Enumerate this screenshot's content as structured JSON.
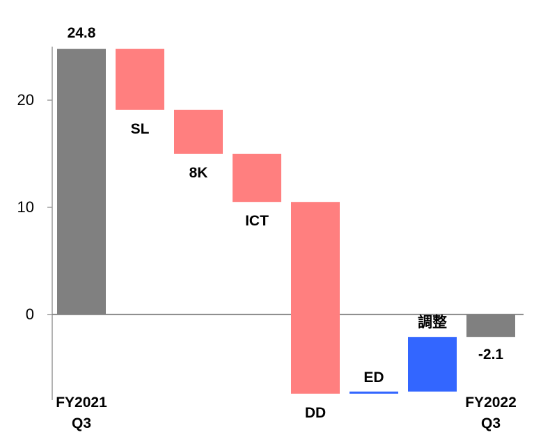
{
  "chart_data": {
    "type": "waterfall",
    "categories": [
      "FY2021\nQ3",
      "SL",
      "8K",
      "ICT",
      "DD",
      "ED",
      "調整",
      "FY2022\nQ3"
    ],
    "values": [
      24.8,
      -5.7,
      -4.1,
      -4.5,
      -17.9,
      0.2,
      5.1,
      -2.1
    ],
    "measure": [
      "absolute",
      "relative",
      "relative",
      "relative",
      "relative",
      "relative",
      "relative",
      "absolute"
    ],
    "colors": {
      "total": "#808080",
      "decrease": "#ff7f7f",
      "increase": "#3366ff"
    },
    "ylim": [
      -8,
      25
    ],
    "yticks": [
      0,
      10,
      20
    ]
  }
}
